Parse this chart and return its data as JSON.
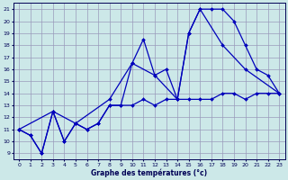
{
  "xlabel": "Graphe des températures (°c)",
  "background_color": "#cce8e8",
  "grid_color": "#9999bb",
  "line_color": "#0000bb",
  "marker_color": "#0000bb",
  "xlim": [
    -0.5,
    23.5
  ],
  "ylim": [
    8.5,
    21.5
  ],
  "xticks": [
    0,
    1,
    2,
    3,
    4,
    5,
    6,
    7,
    8,
    9,
    10,
    11,
    12,
    13,
    14,
    15,
    16,
    17,
    18,
    19,
    20,
    21,
    22,
    23
  ],
  "yticks": [
    9,
    10,
    11,
    12,
    13,
    14,
    15,
    16,
    17,
    18,
    19,
    20,
    21
  ],
  "series1": {
    "x": [
      0,
      1,
      2,
      3,
      4,
      5,
      6,
      7,
      8,
      9,
      10,
      11,
      12,
      13,
      14,
      15,
      16,
      17,
      18,
      19,
      20,
      21,
      22,
      23
    ],
    "y": [
      11,
      10.5,
      9,
      12.5,
      10,
      11.5,
      11,
      11.5,
      13,
      13,
      13,
      13.5,
      13,
      13.5,
      13.5,
      13.5,
      13.5,
      13.5,
      14,
      14,
      13.5,
      14,
      14,
      14
    ]
  },
  "series2": {
    "x": [
      0,
      1,
      2,
      3,
      4,
      5,
      6,
      7,
      8,
      9,
      10,
      11,
      12,
      13,
      14,
      15,
      16,
      17,
      18,
      19,
      20,
      21,
      22,
      23
    ],
    "y": [
      11,
      10.5,
      9,
      12.5,
      10,
      11.5,
      11,
      11.5,
      13,
      13,
      16.5,
      18.5,
      15.5,
      16,
      13.5,
      19,
      21,
      21,
      21,
      20,
      18,
      16,
      15.5,
      14
    ]
  },
  "series3": {
    "x": [
      0,
      3,
      5,
      8,
      10,
      12,
      14,
      15,
      16,
      18,
      20,
      23
    ],
    "y": [
      11,
      12.5,
      11.5,
      13.5,
      16.5,
      15.5,
      13.5,
      19,
      21,
      18,
      16,
      14
    ]
  }
}
